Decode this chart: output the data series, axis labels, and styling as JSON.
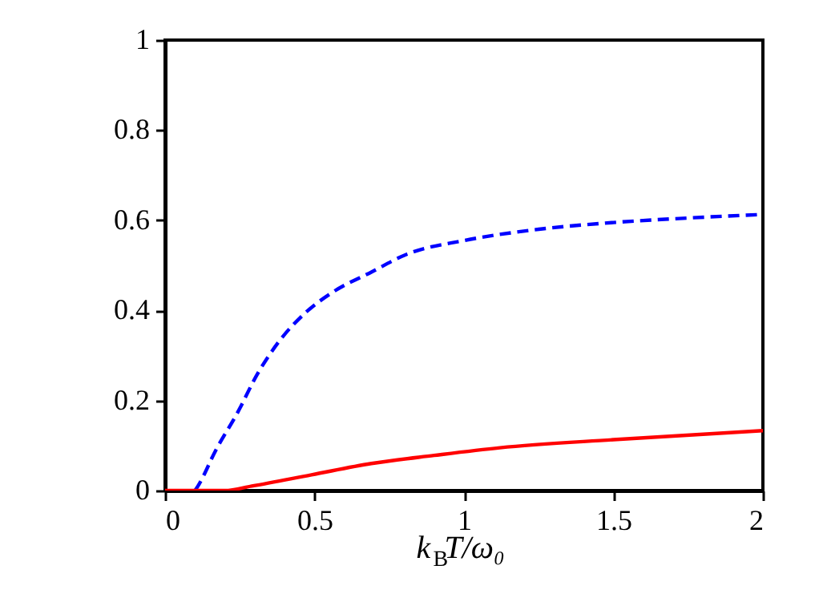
{
  "chart_data": {
    "type": "line",
    "xlabel": "k$_{B}$T/ω₀",
    "xlim": [
      0,
      2
    ],
    "ylim": [
      0,
      1
    ],
    "xticks": [
      0,
      0.5,
      1,
      1.5,
      2
    ],
    "yticks": [
      0,
      0.2,
      0.4,
      0.6,
      0.8,
      1
    ],
    "grid": false,
    "series": [
      {
        "color": "#0000ff",
        "line_style": "dashed",
        "x": [
          0.1,
          0.11,
          0.17,
          0.24,
          0.31,
          0.38,
          0.47,
          0.56,
          0.69,
          0.81,
          1.0,
          1.25,
          1.5,
          1.75,
          2.0
        ],
        "values": [
          0,
          0.01,
          0.09,
          0.17,
          0.26,
          0.33,
          0.395,
          0.44,
          0.485,
          0.525,
          0.555,
          0.58,
          0.595,
          0.605,
          0.613
        ]
      },
      {
        "color": "#ff0000",
        "line_style": "solid",
        "x": [
          0,
          0.2,
          0.29,
          0.49,
          0.69,
          0.9,
          1.12,
          1.5,
          2.0
        ],
        "values": [
          0,
          0.0,
          0.01,
          0.035,
          0.06,
          0.078,
          0.095,
          0.113,
          0.133
        ]
      }
    ]
  }
}
